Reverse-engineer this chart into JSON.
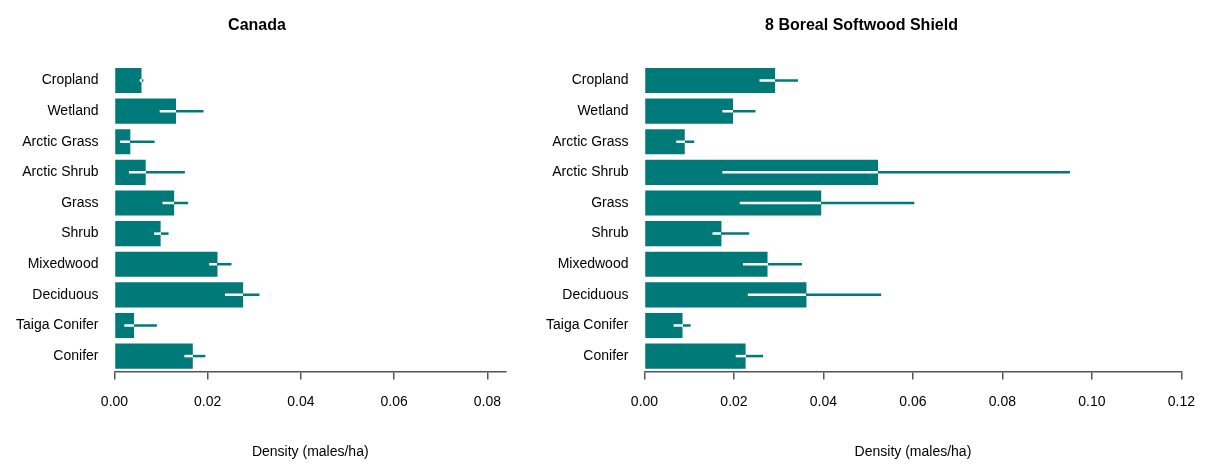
{
  "chart_data": [
    {
      "type": "bar",
      "orientation": "horizontal",
      "title": "Canada",
      "xlabel": "Density (males/ha)",
      "color": "#007a78",
      "categories": [
        "Cropland",
        "Wetland",
        "Arctic Grass",
        "Arctic Shrub",
        "Grass",
        "Shrub",
        "Mixedwood",
        "Deciduous",
        "Taiga Conifer",
        "Conifer"
      ],
      "values": [
        0.0058,
        0.0132,
        0.0034,
        0.0067,
        0.0128,
        0.0099,
        0.0221,
        0.0276,
        0.0042,
        0.0168
      ],
      "errors": [
        [
          0.0054,
          0.0062
        ],
        [
          0.0097,
          0.0191
        ],
        [
          0.0012,
          0.0086
        ],
        [
          0.0031,
          0.0151
        ],
        [
          0.0103,
          0.0158
        ],
        [
          0.0085,
          0.0116
        ],
        [
          0.0203,
          0.0251
        ],
        [
          0.0237,
          0.0311
        ],
        [
          0.0021,
          0.0091
        ],
        [
          0.015,
          0.0195
        ]
      ],
      "xlim": [
        0,
        0.084
      ],
      "xticks": [
        {
          "value": 0,
          "label": "0.00"
        },
        {
          "value": 0.02,
          "label": "0.02"
        },
        {
          "value": 0.04,
          "label": "0.04"
        },
        {
          "value": 0.06,
          "label": "0.06"
        },
        {
          "value": 0.08,
          "label": "0.08"
        }
      ],
      "legend": false
    },
    {
      "type": "bar",
      "orientation": "horizontal",
      "title": "8 Boreal Softwood Shield",
      "xlabel": "Density (males/ha)",
      "color": "#007a78",
      "categories": [
        "Cropland",
        "Wetland",
        "Arctic Grass",
        "Arctic Shrub",
        "Grass",
        "Shrub",
        "Mixedwood",
        "Deciduous",
        "Taiga Conifer",
        "Conifer"
      ],
      "values": [
        0.0292,
        0.0198,
        0.009,
        0.0522,
        0.0395,
        0.0172,
        0.0275,
        0.0362,
        0.0085,
        0.0226
      ],
      "errors": [
        [
          0.0257,
          0.0343
        ],
        [
          0.0174,
          0.0248
        ],
        [
          0.0071,
          0.0111
        ],
        [
          0.0174,
          0.0951
        ],
        [
          0.0213,
          0.0603
        ],
        [
          0.0152,
          0.0234
        ],
        [
          0.022,
          0.0352
        ],
        [
          0.0231,
          0.0529
        ],
        [
          0.0065,
          0.0103
        ],
        [
          0.0204,
          0.0265
        ]
      ],
      "xlim": [
        0,
        0.12
      ],
      "xticks": [
        {
          "value": 0,
          "label": "0.00"
        },
        {
          "value": 0.02,
          "label": "0.02"
        },
        {
          "value": 0.04,
          "label": "0.04"
        },
        {
          "value": 0.06,
          "label": "0.06"
        },
        {
          "value": 0.08,
          "label": "0.08"
        },
        {
          "value": 0.1,
          "label": "0.10"
        },
        {
          "value": 0.12,
          "label": "0.12"
        }
      ],
      "legend": false
    }
  ]
}
